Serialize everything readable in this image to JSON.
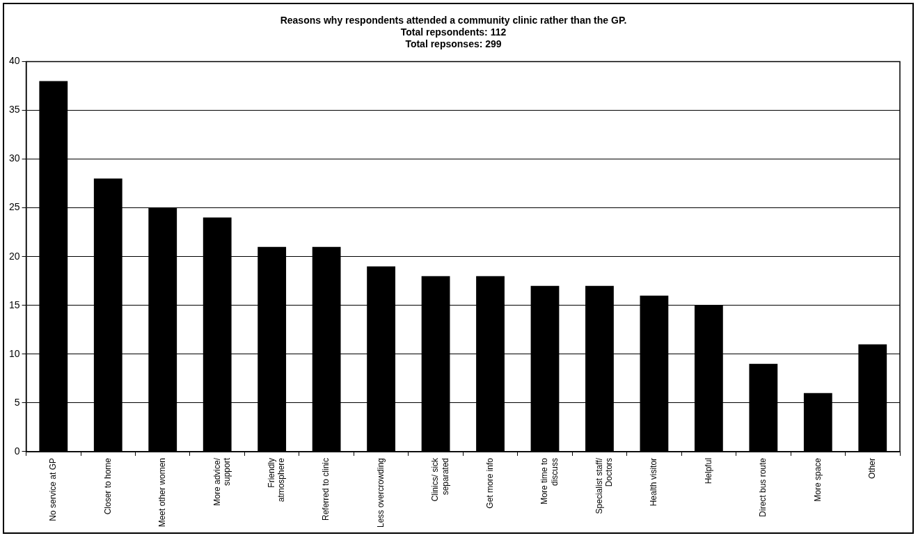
{
  "chart_data": {
    "type": "bar",
    "title": [
      "Reasons why respondents attended a community clinic rather than the GP.",
      "Total repsondents: 112",
      "Total repsonses: 299"
    ],
    "categories": [
      "No service at GP",
      "Closer to home",
      "Meet other women",
      "More advice/ support",
      "Friendly atmosphere",
      "Referred to clinic",
      "Less overcrowding",
      "Clinics/ sick separated",
      "Get more info",
      "More time to discuss",
      "Specialist staff/ Doctors",
      "Health visitor",
      "Helpful",
      "Direct bus route",
      "More space",
      "Other"
    ],
    "values": [
      38,
      28,
      25,
      24,
      21,
      21,
      19,
      18,
      18,
      17,
      17,
      16,
      15,
      9,
      6,
      11
    ],
    "color": "#000000",
    "ylim": [
      0,
      40
    ],
    "yticks": [
      0,
      5,
      10,
      15,
      20,
      25,
      30,
      35,
      40
    ],
    "grid": "y",
    "legend": false
  }
}
